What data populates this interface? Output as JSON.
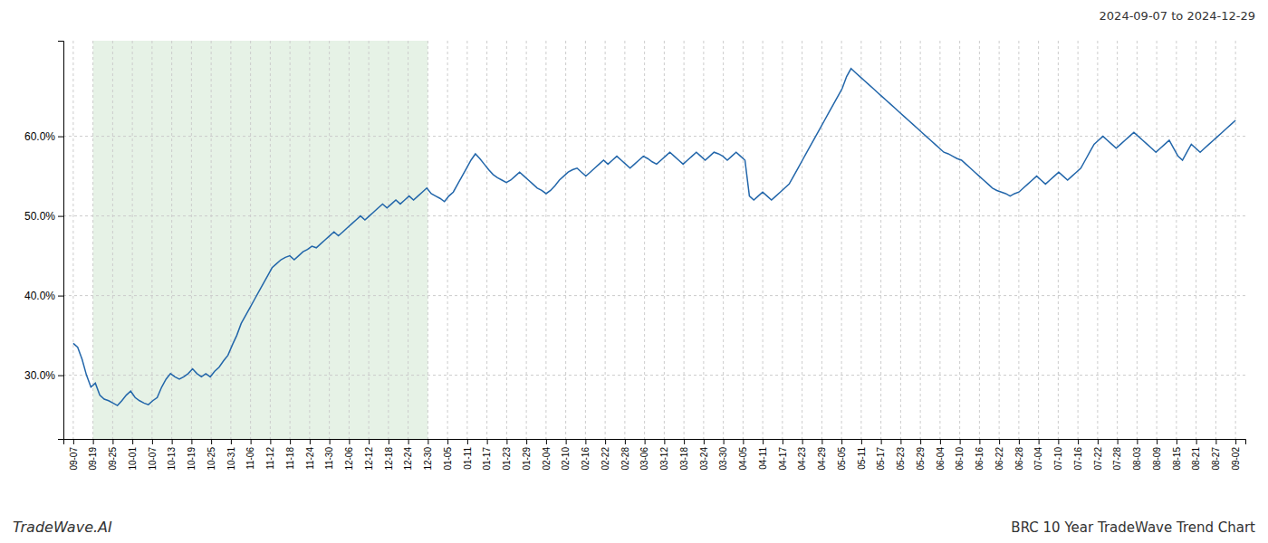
{
  "chart_data": {
    "type": "line",
    "title": "BRC 10 Year TradeWave Trend Chart",
    "subtitle": "2024-09-07 to 2024-12-29",
    "annotations": [
      "TradeWave.AI"
    ],
    "color": "#2266aa",
    "grid": true,
    "shade": {
      "x": [
        1,
        18
      ],
      "color": "#d6ead6"
    },
    "xlim": [
      -0.5,
      59.5
    ],
    "xticks": [
      {
        "value": 0,
        "label": "09-07"
      },
      {
        "value": 1,
        "label": "09-19"
      },
      {
        "value": 2,
        "label": "09-25"
      },
      {
        "value": 3,
        "label": "10-01"
      },
      {
        "value": 4,
        "label": "10-07"
      },
      {
        "value": 5,
        "label": "10-13"
      },
      {
        "value": 6,
        "label": "10-19"
      },
      {
        "value": 7,
        "label": "10-25"
      },
      {
        "value": 8,
        "label": "10-31"
      },
      {
        "value": 9,
        "label": "11-06"
      },
      {
        "value": 10,
        "label": "11-12"
      },
      {
        "value": 11,
        "label": "11-18"
      },
      {
        "value": 12,
        "label": "11-24"
      },
      {
        "value": 13,
        "label": "11-30"
      },
      {
        "value": 14,
        "label": "12-06"
      },
      {
        "value": 15,
        "label": "12-12"
      },
      {
        "value": 16,
        "label": "12-18"
      },
      {
        "value": 17,
        "label": "12-24"
      },
      {
        "value": 18,
        "label": "12-30"
      },
      {
        "value": 19,
        "label": "01-05"
      },
      {
        "value": 20,
        "label": "01-11"
      },
      {
        "value": 21,
        "label": "01-17"
      },
      {
        "value": 22,
        "label": "01-23"
      },
      {
        "value": 23,
        "label": "01-29"
      },
      {
        "value": 24,
        "label": "02-04"
      },
      {
        "value": 25,
        "label": "02-10"
      },
      {
        "value": 26,
        "label": "02-16"
      },
      {
        "value": 27,
        "label": "02-22"
      },
      {
        "value": 28,
        "label": "02-28"
      },
      {
        "value": 29,
        "label": "03-06"
      },
      {
        "value": 30,
        "label": "03-12"
      },
      {
        "value": 31,
        "label": "03-18"
      },
      {
        "value": 32,
        "label": "03-24"
      },
      {
        "value": 33,
        "label": "03-30"
      },
      {
        "value": 34,
        "label": "04-05"
      },
      {
        "value": 35,
        "label": "04-11"
      },
      {
        "value": 36,
        "label": "04-17"
      },
      {
        "value": 37,
        "label": "04-23"
      },
      {
        "value": 38,
        "label": "04-29"
      },
      {
        "value": 39,
        "label": "05-05"
      },
      {
        "value": 40,
        "label": "05-11"
      },
      {
        "value": 41,
        "label": "05-17"
      },
      {
        "value": 42,
        "label": "05-23"
      },
      {
        "value": 43,
        "label": "05-29"
      },
      {
        "value": 44,
        "label": "06-04"
      },
      {
        "value": 45,
        "label": "06-10"
      },
      {
        "value": 46,
        "label": "06-16"
      },
      {
        "value": 47,
        "label": "06-22"
      },
      {
        "value": 48,
        "label": "06-28"
      },
      {
        "value": 49,
        "label": "07-04"
      },
      {
        "value": 50,
        "label": "07-10"
      },
      {
        "value": 51,
        "label": "07-16"
      },
      {
        "value": 52,
        "label": "07-22"
      },
      {
        "value": 53,
        "label": "07-28"
      },
      {
        "value": 54,
        "label": "08-03"
      },
      {
        "value": 55,
        "label": "08-09"
      },
      {
        "value": 56,
        "label": "08-15"
      },
      {
        "value": 57,
        "label": "08-21"
      },
      {
        "value": 58,
        "label": "08-27"
      },
      {
        "value": 59,
        "label": "09-02"
      }
    ],
    "ylim": [
      22,
      72
    ],
    "yticks": [
      {
        "value": 30,
        "label": "30.0%"
      },
      {
        "value": 40,
        "label": "40.0%"
      },
      {
        "value": 50,
        "label": "50.0%"
      },
      {
        "value": 60,
        "label": "60.0%"
      }
    ],
    "values": [
      34.0,
      33.5,
      32.0,
      30.0,
      28.5,
      29.0,
      27.5,
      27.0,
      26.8,
      26.5,
      26.2,
      26.8,
      27.5,
      28.0,
      27.2,
      26.8,
      26.5,
      26.3,
      26.8,
      27.2,
      28.5,
      29.5,
      30.2,
      29.8,
      29.5,
      29.8,
      30.2,
      30.8,
      30.2,
      29.8,
      30.2,
      29.8,
      30.5,
      31.0,
      31.8,
      32.5,
      33.8,
      35.0,
      36.5,
      37.5,
      38.5,
      39.5,
      40.5,
      41.5,
      42.5,
      43.5,
      44.0,
      44.5,
      44.8,
      45.0,
      44.5,
      45.0,
      45.5,
      45.8,
      46.2,
      46.0,
      46.5,
      47.0,
      47.5,
      48.0,
      47.5,
      48.0,
      48.5,
      49.0,
      49.5,
      50.0,
      49.5,
      50.0,
      50.5,
      51.0,
      51.5,
      51.0,
      51.5,
      52.0,
      51.5,
      52.0,
      52.5,
      52.0,
      52.5,
      53.0,
      53.5,
      52.8,
      52.5,
      52.2,
      51.8,
      52.5,
      53.0,
      54.0,
      55.0,
      56.0,
      57.0,
      57.8,
      57.2,
      56.5,
      55.8,
      55.2,
      54.8,
      54.5,
      54.2,
      54.5,
      55.0,
      55.5,
      55.0,
      54.5,
      54.0,
      53.5,
      53.2,
      52.8,
      53.2,
      53.8,
      54.5,
      55.0,
      55.5,
      55.8,
      56.0,
      55.5,
      55.0,
      55.5,
      56.0,
      56.5,
      57.0,
      56.5,
      57.0,
      57.5,
      57.0,
      56.5,
      56.0,
      56.5,
      57.0,
      57.5,
      57.2,
      56.8,
      56.5,
      57.0,
      57.5,
      58.0,
      57.5,
      57.0,
      56.5,
      57.0,
      57.5,
      58.0,
      57.5,
      57.0,
      57.5,
      58.0,
      57.8,
      57.5,
      57.0,
      57.5,
      58.0,
      57.5,
      57.0,
      52.5,
      52.0,
      52.5,
      53.0,
      52.5,
      52.0,
      52.5,
      53.0,
      53.5,
      54.0,
      55.0,
      56.0,
      57.0,
      58.0,
      59.0,
      60.0,
      61.0,
      62.0,
      63.0,
      64.0,
      65.0,
      66.0,
      67.5,
      68.5,
      68.0,
      67.5,
      67.0,
      66.5,
      66.0,
      65.5,
      65.0,
      64.5,
      64.0,
      63.5,
      63.0,
      62.5,
      62.0,
      61.5,
      61.0,
      60.5,
      60.0,
      59.5,
      59.0,
      58.5,
      58.0,
      57.8,
      57.5,
      57.2,
      57.0,
      56.5,
      56.0,
      55.5,
      55.0,
      54.5,
      54.0,
      53.5,
      53.2,
      53.0,
      52.8,
      52.5,
      52.8,
      53.0,
      53.5,
      54.0,
      54.5,
      55.0,
      54.5,
      54.0,
      54.5,
      55.0,
      55.5,
      55.0,
      54.5,
      55.0,
      55.5,
      56.0,
      57.0,
      58.0,
      59.0,
      59.5,
      60.0,
      59.5,
      59.0,
      58.5,
      59.0,
      59.5,
      60.0,
      60.5,
      60.0,
      59.5,
      59.0,
      58.5,
      58.0,
      58.5,
      59.0,
      59.5,
      58.5,
      57.5,
      57.0,
      58.0,
      59.0,
      58.5,
      58.0,
      58.5,
      59.0,
      59.5,
      60.0,
      60.5,
      61.0,
      61.5,
      62.0
    ]
  }
}
